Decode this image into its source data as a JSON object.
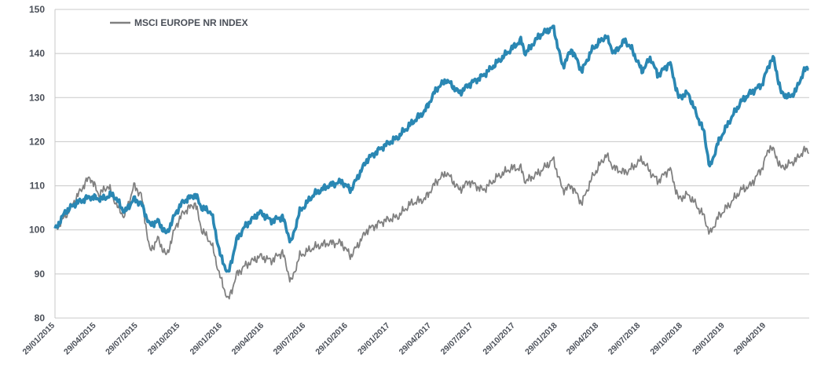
{
  "colors": {
    "primary_series": "#2a87b3",
    "benchmark_series": "#808080",
    "grid": "#c8c8c8",
    "axis_text": "#4a4f58"
  },
  "chart_data": {
    "type": "line",
    "title": "",
    "xlabel": "",
    "ylabel": "",
    "ylim": [
      80,
      150
    ],
    "yticks": [
      80,
      90,
      100,
      110,
      120,
      130,
      140,
      150
    ],
    "xlim": [
      "2015-01-29",
      "2019-08-01"
    ],
    "xticks": [
      "29/01/2015",
      "29/04/2015",
      "29/07/2015",
      "29/10/2015",
      "29/01/2016",
      "29/04/2016",
      "29/07/2016",
      "29/10/2016",
      "29/01/2017",
      "29/04/2017",
      "29/07/2017",
      "29/10/2017",
      "29/01/2018",
      "29/04/2018",
      "29/07/2018",
      "29/10/2018",
      "29/01/2019",
      "29/04/2019"
    ],
    "grid": "horizontal",
    "legend": {
      "position": "top-left",
      "label": "MSCI EUROPE NR INDEX"
    },
    "series": [
      {
        "name": "",
        "color": "#2a87b3",
        "points": [
          [
            "2015-01-29",
            100
          ],
          [
            "2015-02-20",
            104
          ],
          [
            "2015-03-15",
            106
          ],
          [
            "2015-04-15",
            107.5
          ],
          [
            "2015-05-10",
            107
          ],
          [
            "2015-06-05",
            108
          ],
          [
            "2015-06-30",
            104
          ],
          [
            "2015-07-20",
            107
          ],
          [
            "2015-08-05",
            106
          ],
          [
            "2015-08-24",
            101
          ],
          [
            "2015-09-10",
            102
          ],
          [
            "2015-09-29",
            99
          ],
          [
            "2015-10-20",
            104
          ],
          [
            "2015-11-05",
            106.5
          ],
          [
            "2015-12-01",
            108
          ],
          [
            "2015-12-15",
            105
          ],
          [
            "2016-01-05",
            104
          ],
          [
            "2016-01-25",
            94
          ],
          [
            "2016-02-11",
            90
          ],
          [
            "2016-03-01",
            98
          ],
          [
            "2016-03-20",
            101
          ],
          [
            "2016-04-20",
            104
          ],
          [
            "2016-05-15",
            102
          ],
          [
            "2016-06-08",
            103
          ],
          [
            "2016-06-27",
            97
          ],
          [
            "2016-07-15",
            104
          ],
          [
            "2016-08-15",
            108
          ],
          [
            "2016-09-15",
            110
          ],
          [
            "2016-10-15",
            111
          ],
          [
            "2016-11-04",
            109
          ],
          [
            "2016-12-10",
            116
          ],
          [
            "2017-01-15",
            119
          ],
          [
            "2017-02-15",
            121
          ],
          [
            "2017-03-15",
            124
          ],
          [
            "2017-04-15",
            127
          ],
          [
            "2017-05-10",
            132
          ],
          [
            "2017-06-01",
            134
          ],
          [
            "2017-06-29",
            131
          ],
          [
            "2017-07-20",
            133
          ],
          [
            "2017-08-20",
            135
          ],
          [
            "2017-09-20",
            138
          ],
          [
            "2017-10-20",
            141
          ],
          [
            "2017-11-10",
            143
          ],
          [
            "2017-11-20",
            140
          ],
          [
            "2017-12-20",
            144
          ],
          [
            "2018-01-20",
            146
          ],
          [
            "2018-02-09",
            137
          ],
          [
            "2018-03-01",
            141
          ],
          [
            "2018-03-23",
            136
          ],
          [
            "2018-04-15",
            141
          ],
          [
            "2018-05-15",
            144
          ],
          [
            "2018-06-01",
            140
          ],
          [
            "2018-06-25",
            143
          ],
          [
            "2018-07-10",
            141
          ],
          [
            "2018-08-01",
            136
          ],
          [
            "2018-08-20",
            139
          ],
          [
            "2018-09-05",
            135
          ],
          [
            "2018-10-01",
            138
          ],
          [
            "2018-10-20",
            130
          ],
          [
            "2018-11-10",
            131
          ],
          [
            "2018-11-25",
            127
          ],
          [
            "2018-12-15",
            122
          ],
          [
            "2018-12-27",
            114
          ],
          [
            "2019-01-15",
            120
          ],
          [
            "2019-02-10",
            125
          ],
          [
            "2019-03-05",
            129
          ],
          [
            "2019-03-25",
            131
          ],
          [
            "2019-04-20",
            133
          ],
          [
            "2019-05-07",
            138
          ],
          [
            "2019-05-15",
            139
          ],
          [
            "2019-06-01",
            131
          ],
          [
            "2019-06-20",
            130
          ],
          [
            "2019-07-05",
            132
          ],
          [
            "2019-07-20",
            136
          ],
          [
            "2019-08-01",
            137
          ]
        ]
      },
      {
        "name": "MSCI EUROPE NR INDEX",
        "color": "#808080",
        "points": [
          [
            "2015-01-29",
            100
          ],
          [
            "2015-02-20",
            103
          ],
          [
            "2015-03-15",
            107
          ],
          [
            "2015-04-01",
            110
          ],
          [
            "2015-04-15",
            112
          ],
          [
            "2015-05-05",
            108
          ],
          [
            "2015-05-25",
            110
          ],
          [
            "2015-06-15",
            105
          ],
          [
            "2015-06-30",
            103
          ],
          [
            "2015-07-20",
            110
          ],
          [
            "2015-08-05",
            108
          ],
          [
            "2015-08-24",
            95
          ],
          [
            "2015-09-10",
            98
          ],
          [
            "2015-09-29",
            94
          ],
          [
            "2015-10-20",
            101
          ],
          [
            "2015-11-05",
            104
          ],
          [
            "2015-12-01",
            106
          ],
          [
            "2015-12-15",
            100
          ],
          [
            "2016-01-05",
            97
          ],
          [
            "2016-01-25",
            89
          ],
          [
            "2016-02-11",
            84
          ],
          [
            "2016-03-01",
            90
          ],
          [
            "2016-03-20",
            92
          ],
          [
            "2016-04-20",
            94
          ],
          [
            "2016-05-15",
            93
          ],
          [
            "2016-06-08",
            95
          ],
          [
            "2016-06-27",
            88
          ],
          [
            "2016-07-15",
            94
          ],
          [
            "2016-08-15",
            96
          ],
          [
            "2016-09-15",
            97
          ],
          [
            "2016-10-15",
            97
          ],
          [
            "2016-11-04",
            94
          ],
          [
            "2016-12-10",
            100
          ],
          [
            "2017-01-15",
            102
          ],
          [
            "2017-02-15",
            103
          ],
          [
            "2017-03-15",
            106
          ],
          [
            "2017-04-15",
            107
          ],
          [
            "2017-05-10",
            111
          ],
          [
            "2017-06-01",
            113
          ],
          [
            "2017-06-29",
            109
          ],
          [
            "2017-07-20",
            111
          ],
          [
            "2017-08-20",
            109
          ],
          [
            "2017-09-20",
            112
          ],
          [
            "2017-10-20",
            114
          ],
          [
            "2017-11-10",
            114
          ],
          [
            "2017-11-20",
            111
          ],
          [
            "2017-12-20",
            113
          ],
          [
            "2018-01-20",
            116
          ],
          [
            "2018-02-09",
            109
          ],
          [
            "2018-03-01",
            110
          ],
          [
            "2018-03-23",
            106
          ],
          [
            "2018-04-15",
            112
          ],
          [
            "2018-05-15",
            117
          ],
          [
            "2018-06-01",
            114
          ],
          [
            "2018-06-25",
            113
          ],
          [
            "2018-07-10",
            114
          ],
          [
            "2018-08-01",
            116
          ],
          [
            "2018-08-20",
            113
          ],
          [
            "2018-09-05",
            111
          ],
          [
            "2018-10-01",
            114
          ],
          [
            "2018-10-20",
            107
          ],
          [
            "2018-11-10",
            108
          ],
          [
            "2018-11-25",
            106
          ],
          [
            "2018-12-15",
            103
          ],
          [
            "2018-12-27",
            99
          ],
          [
            "2019-01-15",
            103
          ],
          [
            "2019-02-10",
            106
          ],
          [
            "2019-03-05",
            109
          ],
          [
            "2019-03-25",
            110
          ],
          [
            "2019-04-20",
            114
          ],
          [
            "2019-05-07",
            119
          ],
          [
            "2019-05-15",
            118
          ],
          [
            "2019-06-01",
            114
          ],
          [
            "2019-06-20",
            115
          ],
          [
            "2019-07-05",
            116
          ],
          [
            "2019-07-20",
            118
          ],
          [
            "2019-08-01",
            118
          ]
        ]
      }
    ]
  }
}
